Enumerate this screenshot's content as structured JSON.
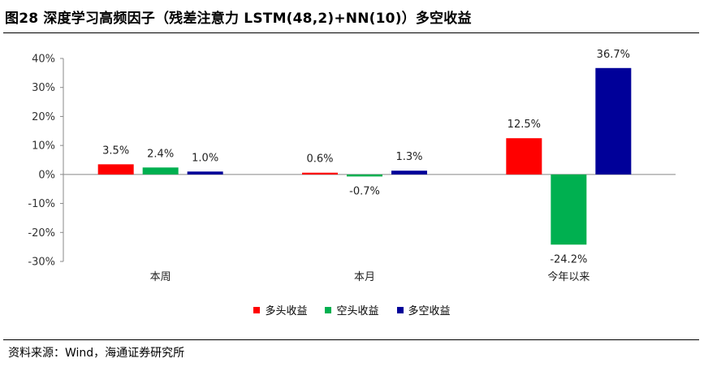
{
  "title": "图28 深度学习高频因子（残差注意力 LSTM(48,2)+NN(10)）多空收益",
  "source": "资料来源：Wind，海通证券研究所",
  "colors": {
    "long": "#ff0000",
    "short": "#00b050",
    "long_short": "#000099"
  },
  "chart_data": {
    "type": "bar",
    "categories": [
      "本周",
      "本月",
      "今年以来"
    ],
    "series": [
      {
        "name": "多头收益",
        "values": [
          3.5,
          0.6,
          12.5
        ],
        "labels": [
          "3.5%",
          "0.6%",
          "12.5%"
        ]
      },
      {
        "name": "空头收益",
        "values": [
          2.4,
          -0.7,
          -24.2
        ],
        "labels": [
          "2.4%",
          "-0.7%",
          "-24.2%"
        ]
      },
      {
        "name": "多空收益",
        "values": [
          1.0,
          1.3,
          36.7
        ],
        "labels": [
          "1.0%",
          "1.3%",
          "36.7%"
        ]
      }
    ],
    "ylim": [
      -30,
      40
    ],
    "yticks": [
      40,
      30,
      20,
      10,
      0,
      -10,
      -20,
      -30
    ],
    "ytick_labels": [
      "40%",
      "30%",
      "20%",
      "10%",
      "0%",
      "-10%",
      "-20%",
      "-30%"
    ],
    "legend_position": "bottom-center",
    "grid": false
  }
}
